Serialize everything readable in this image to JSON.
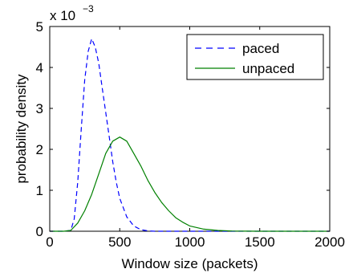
{
  "chart_data": {
    "type": "line",
    "title": "",
    "xlabel": "Window size (packets)",
    "ylabel": "probability density",
    "xlim": [
      0,
      2000
    ],
    "ylim": [
      0,
      0.005
    ],
    "y_scale_label": {
      "base": "x 10",
      "exponent": "−3"
    },
    "x_ticks": [
      0,
      500,
      1000,
      1500,
      2000
    ],
    "x_tick_labels": [
      "0",
      "500",
      "1000",
      "1500",
      "2000"
    ],
    "y_ticks": [
      0,
      0.001,
      0.002,
      0.003,
      0.004,
      0.005
    ],
    "y_tick_labels": [
      "0",
      "1",
      "2",
      "3",
      "4",
      "5"
    ],
    "grid": false,
    "legend_position": "top-right",
    "series": [
      {
        "name": "paced",
        "color": "#0000ff",
        "line_style": "dashed",
        "x": [
          0,
          100,
          150,
          175,
          200,
          225,
          250,
          275,
          300,
          325,
          350,
          375,
          400,
          425,
          450,
          475,
          500,
          550,
          600,
          650,
          700,
          750,
          800,
          1000,
          2000
        ],
        "y": [
          0,
          0,
          2e-05,
          0.0003,
          0.0012,
          0.0025,
          0.0037,
          0.0044,
          0.0047,
          0.0045,
          0.0041,
          0.0035,
          0.0029,
          0.0023,
          0.0017,
          0.0012,
          0.0008,
          0.00035,
          0.00013,
          4e-05,
          1e-05,
          0,
          0,
          0,
          0
        ]
      },
      {
        "name": "unpaced",
        "color": "#008000",
        "line_style": "solid",
        "x": [
          0,
          100,
          150,
          200,
          250,
          300,
          350,
          400,
          450,
          500,
          550,
          600,
          650,
          700,
          750,
          800,
          850,
          900,
          950,
          1000,
          1100,
          1200,
          1300,
          1400,
          1500,
          2000
        ],
        "y": [
          0,
          0,
          2e-05,
          0.0002,
          0.0005,
          0.0009,
          0.0014,
          0.0019,
          0.0022,
          0.0023,
          0.0022,
          0.0019,
          0.0016,
          0.00125,
          0.00095,
          0.0007,
          0.0005,
          0.00033,
          0.00022,
          0.00013,
          5e-05,
          2e-05,
          5e-06,
          1e-06,
          0,
          0
        ]
      }
    ]
  }
}
